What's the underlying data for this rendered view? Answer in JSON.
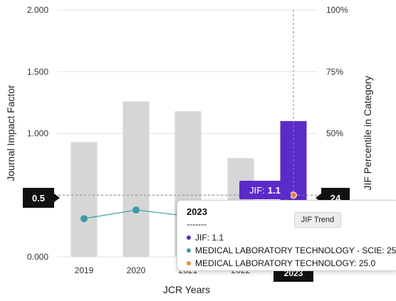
{
  "chart_data": {
    "type": "bar",
    "xlabel": "JCR Years",
    "ylabel": "Journal Impact Factor",
    "y2label": "JIF Percentile in Category",
    "categories": [
      "2019",
      "2020",
      "2021",
      "2022",
      "2023"
    ],
    "ylim": [
      0,
      2
    ],
    "y2lim": [
      0,
      100
    ],
    "yticks": [
      "0.000",
      "0.500",
      "1.000",
      "1.500",
      "2.000"
    ],
    "y2ticks": [
      "0%",
      "25%",
      "50%",
      "75%",
      "100%"
    ],
    "grid": true,
    "series": [
      {
        "name": "JIF",
        "kind": "bar",
        "values": [
          0.93,
          1.26,
          1.18,
          0.8,
          1.1
        ],
        "color": "#d6d6d6",
        "highlight_color": "#5b2bc9"
      },
      {
        "name": "MEDICAL LABORATORY TECHNOLOGY - SCIE",
        "kind": "line",
        "axis": "right",
        "values": [
          15.5,
          19,
          16.5,
          12,
          25
        ],
        "color": "#3a9aa8"
      }
    ],
    "highlight_year": "2023",
    "crosshair_value": 25,
    "highlight_point_color": "#f08a4b"
  },
  "markers": {
    "left_value": "0.5",
    "right_value": "24",
    "bottom_year": "2023"
  },
  "jif_label": {
    "prefix": "JIF:",
    "value": "1.1"
  },
  "trend_tooltip": "JIF Trend",
  "tooltip": {
    "title": "2023",
    "separator": "-------",
    "rows": [
      {
        "text": "JIF: 1.1",
        "color": "#5b2bc9"
      },
      {
        "text": "MEDICAL LABORATORY TECHNOLOGY - SCIE: 25.0",
        "color": "#3a9aa8"
      },
      {
        "text": "MEDICAL LABORATORY TECHNOLOGY: 25.0",
        "color": "#f08a4b"
      }
    ]
  }
}
